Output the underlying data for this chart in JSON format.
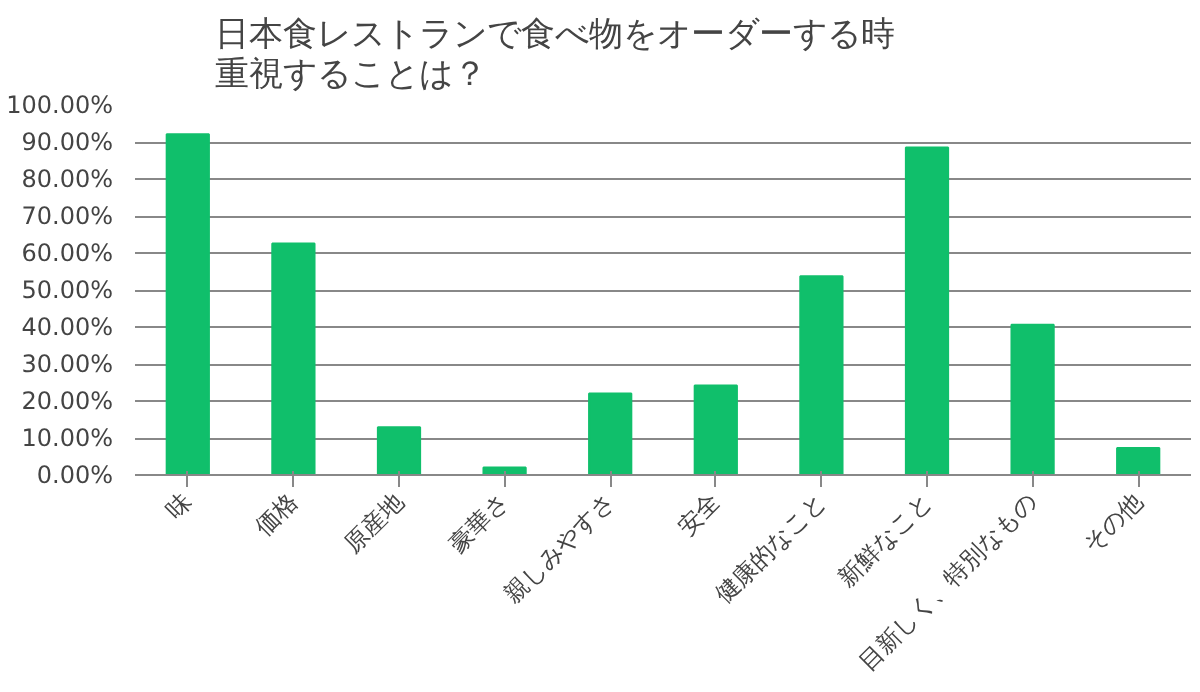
{
  "chart_data": {
    "type": "bar",
    "title": "日本食レストランで食べ物をオーダーする時重視することは？",
    "categories": [
      "味",
      "価格",
      "原産地",
      "豪華さ",
      "親しみやすさ",
      "安全",
      "健康的なこと",
      "新鮮なこと",
      "目新しく、特別なもの",
      "その他"
    ],
    "values": [
      92.1,
      62.6,
      12.9,
      2.0,
      22.0,
      24.2,
      53.7,
      88.5,
      40.6,
      7.3
    ],
    "color": "#10bf6b",
    "ylim": [
      0,
      100
    ],
    "yticks": [
      {
        "value": 0,
        "label": "0.00%"
      },
      {
        "value": 10,
        "label": "10.00%"
      },
      {
        "value": 20,
        "label": "20.00%"
      },
      {
        "value": 30,
        "label": "30.00%"
      },
      {
        "value": 40,
        "label": "40.00%"
      },
      {
        "value": 50,
        "label": "50.00%"
      },
      {
        "value": 60,
        "label": "60.00%"
      },
      {
        "value": 70,
        "label": "70.00%"
      },
      {
        "value": 80,
        "label": "80.00%"
      },
      {
        "value": 90,
        "label": "90.00%"
      },
      {
        "value": 100,
        "label": "100.00%"
      }
    ],
    "grid": "y"
  }
}
